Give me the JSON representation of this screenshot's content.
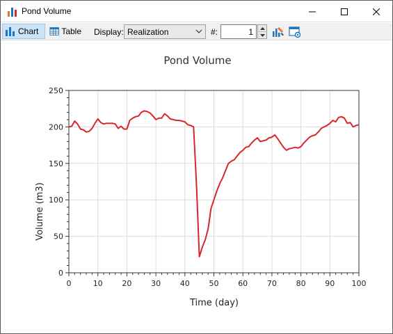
{
  "window": {
    "title": "Pond Volume",
    "app_icon": "bar-chart-icon"
  },
  "toolbar": {
    "chart_label": "Chart",
    "table_label": "Table",
    "display_label": "Display:",
    "display_value": "Realization",
    "hash_label": "#:",
    "realization_number": "1"
  },
  "colors": {
    "series": "#d8262b",
    "accent": "#1e73be",
    "grid": "#dcdcdc"
  },
  "chart_data": {
    "type": "line",
    "title": "Pond Volume",
    "xlabel": "Time (day)",
    "ylabel": "Volume (m3)",
    "xlim": [
      0,
      100
    ],
    "ylim": [
      0,
      250
    ],
    "xticks": [
      "0",
      "10",
      "20",
      "30",
      "40",
      "50",
      "60",
      "70",
      "80",
      "90",
      "100"
    ],
    "yticks": [
      "0",
      "50",
      "100",
      "150",
      "200",
      "250"
    ],
    "grid": true,
    "series": [
      {
        "x": [
          0,
          1,
          2,
          3,
          4,
          5,
          6,
          7,
          8,
          9,
          10,
          11,
          12,
          13,
          14,
          15,
          16,
          17,
          18,
          19,
          20,
          21,
          22,
          23,
          24,
          25,
          26,
          27,
          28,
          29,
          30,
          31,
          32,
          33,
          34,
          35,
          36,
          37,
          38,
          39,
          40,
          41,
          42,
          43,
          44,
          45,
          46,
          47,
          48,
          49,
          50,
          51,
          52,
          53,
          54,
          55,
          56,
          57,
          58,
          59,
          60,
          61,
          62,
          63,
          64,
          65,
          66,
          67,
          68,
          69,
          70,
          71,
          72,
          73,
          74,
          75,
          76,
          77,
          78,
          79,
          80,
          81,
          82,
          83,
          84,
          85,
          86,
          87,
          88,
          89,
          90,
          91,
          92,
          93,
          94,
          95,
          96,
          97,
          98,
          99,
          100
        ],
        "values": [
          200,
          201,
          208,
          204,
          197,
          196,
          193,
          194,
          198,
          205,
          211,
          206,
          204,
          205,
          205,
          205,
          204,
          198,
          201,
          197,
          197,
          209,
          212,
          214,
          215,
          220,
          222,
          221,
          219,
          215,
          210,
          212,
          212,
          218,
          215,
          211,
          210,
          209,
          209,
          208,
          207,
          203,
          202,
          200,
          120,
          22,
          35,
          45,
          60,
          88,
          100,
          112,
          122,
          130,
          140,
          150,
          153,
          155,
          160,
          165,
          168,
          172,
          173,
          178,
          182,
          185,
          180,
          181,
          182,
          185,
          186,
          189,
          184,
          178,
          172,
          168,
          170,
          171,
          172,
          171,
          173,
          178,
          182,
          186,
          188,
          189,
          193,
          198,
          200,
          202,
          205,
          209,
          207,
          213,
          214,
          212,
          205,
          206,
          200,
          202,
          203
        ]
      }
    ]
  }
}
